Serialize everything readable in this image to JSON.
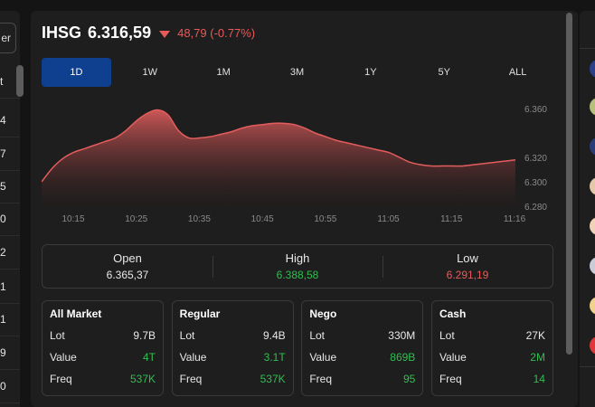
{
  "left_panel": {
    "filter_label": "er",
    "rows": [
      "t",
      "4",
      "7",
      "5",
      "0",
      "2",
      "1",
      "1",
      "9",
      "0"
    ]
  },
  "header": {
    "name": "IHSG",
    "value": "6.316,59",
    "change": "48,79 (-0.77%)",
    "trend": "down",
    "down_color": "#e85a5a"
  },
  "tabs": [
    {
      "label": "1D",
      "active": true
    },
    {
      "label": "1W",
      "active": false
    },
    {
      "label": "1M",
      "active": false
    },
    {
      "label": "3M",
      "active": false
    },
    {
      "label": "1Y",
      "active": false
    },
    {
      "label": "5Y",
      "active": false
    },
    {
      "label": "ALL",
      "active": false
    }
  ],
  "chart_data": {
    "type": "area",
    "x_ticks": [
      "10:15",
      "10:25",
      "10:35",
      "10:45",
      "10:55",
      "11:05",
      "11:15",
      "11:16"
    ],
    "y_ticks": [
      "6.360",
      "6.320",
      "6.300",
      "6.280"
    ],
    "ylim": [
      6280,
      6372
    ],
    "series": [
      {
        "color": "#e35d5d",
        "points": [
          [
            0,
            6300
          ],
          [
            1,
            6311
          ],
          [
            2,
            6319
          ],
          [
            3,
            6324
          ],
          [
            4,
            6327
          ],
          [
            5,
            6330
          ],
          [
            6,
            6333
          ],
          [
            7,
            6336
          ],
          [
            8,
            6342
          ],
          [
            9,
            6350
          ],
          [
            10,
            6356
          ],
          [
            11,
            6359
          ],
          [
            12,
            6355
          ],
          [
            13,
            6342
          ],
          [
            14,
            6336
          ],
          [
            15,
            6336
          ],
          [
            16,
            6337
          ],
          [
            17,
            6339
          ],
          [
            18,
            6341
          ],
          [
            19,
            6344
          ],
          [
            20,
            6346
          ],
          [
            21,
            6347
          ],
          [
            22,
            6348
          ],
          [
            23,
            6348
          ],
          [
            24,
            6347
          ],
          [
            25,
            6344
          ],
          [
            26,
            6340
          ],
          [
            27,
            6337
          ],
          [
            28,
            6334
          ],
          [
            29,
            6332
          ],
          [
            30,
            6330
          ],
          [
            31,
            6328
          ],
          [
            32,
            6326
          ],
          [
            33,
            6324
          ],
          [
            34,
            6320
          ],
          [
            35,
            6316
          ],
          [
            36,
            6314
          ],
          [
            37,
            6313
          ],
          [
            38,
            6313
          ],
          [
            39,
            6313
          ],
          [
            40,
            6313
          ],
          [
            41,
            6314
          ],
          [
            42,
            6315
          ],
          [
            43,
            6316
          ],
          [
            44,
            6317
          ],
          [
            45,
            6318
          ]
        ]
      }
    ],
    "grid": false
  },
  "ohl": {
    "open_label": "Open",
    "open_value": "6.365,37",
    "high_label": "High",
    "high_value": "6.388,58",
    "low_label": "Low",
    "low_value": "6.291,19"
  },
  "colors": {
    "up": "#2fbf4f",
    "down": "#e85a5a",
    "accent": "#0f3f8f"
  },
  "market_boxes": [
    {
      "title": "All Market",
      "lot": "9.7B",
      "value": "4T",
      "freq": "537K"
    },
    {
      "title": "Regular",
      "lot": "9.4B",
      "value": "3.1T",
      "freq": "537K"
    },
    {
      "title": "Nego",
      "lot": "330M",
      "value": "869B",
      "freq": "95"
    },
    {
      "title": "Cash",
      "lot": "27K",
      "value": "2M",
      "freq": "14"
    }
  ],
  "row_labels": {
    "lot": "Lot",
    "value": "Value",
    "freq": "Freq"
  }
}
